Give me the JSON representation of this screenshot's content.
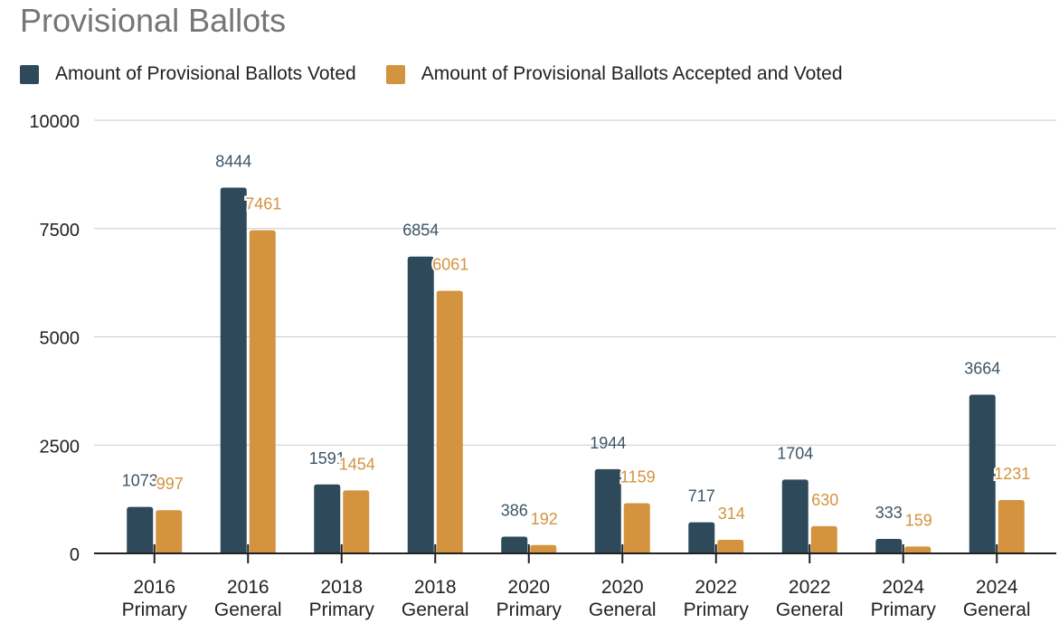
{
  "chart_data": {
    "type": "bar",
    "title": "Provisional Ballots",
    "xlabel": "",
    "ylabel": "",
    "ylim": [
      0,
      10000
    ],
    "yticks": [
      0,
      2500,
      5000,
      7500,
      10000
    ],
    "grid": true,
    "legend_position": "top-left",
    "categories": [
      [
        "2016",
        "Primary"
      ],
      [
        "2016",
        "General"
      ],
      [
        "2018",
        "Primary"
      ],
      [
        "2018",
        "General"
      ],
      [
        "2020",
        "Primary"
      ],
      [
        "2020",
        "General"
      ],
      [
        "2022",
        "Primary"
      ],
      [
        "2022",
        "General"
      ],
      [
        "2024",
        "Primary"
      ],
      [
        "2024",
        "General"
      ]
    ],
    "series": [
      {
        "name": "Amount of Provisional Ballots Voted",
        "color": "#2e4a5a",
        "values": [
          1073,
          8444,
          1591,
          6854,
          386,
          1944,
          717,
          1704,
          333,
          3664
        ],
        "labels": [
          "1073",
          "8444",
          "1591",
          "6854",
          "386",
          "1944",
          "717",
          "1704",
          "333",
          "3664"
        ]
      },
      {
        "name": "Amount of Provisional Ballots Accepted and Voted",
        "color": "#d4933f",
        "values": [
          997,
          7461,
          1454,
          6061,
          192,
          1159,
          314,
          630,
          159,
          1231
        ],
        "labels": [
          "997",
          "7461",
          "1454",
          "6061",
          "192",
          "1159",
          "314",
          "630",
          "159",
          "1231"
        ]
      }
    ]
  }
}
